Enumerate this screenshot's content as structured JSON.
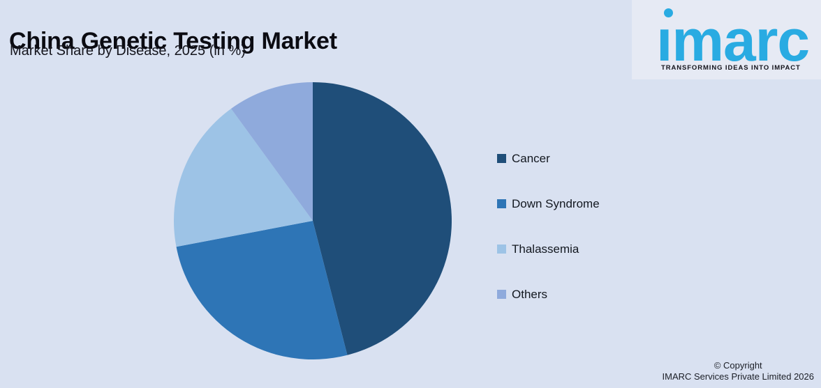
{
  "chart_data": {
    "type": "pie",
    "title": "China Genetic Testing Market",
    "subtitle": "Market Share by Disease, 2025 (in %)",
    "unit": "percent market share",
    "start_angle_deg": 0,
    "direction": "clockwise",
    "legend_position": "right",
    "slices": [
      {
        "label": "Cancer",
        "value": 46,
        "color": "#1F4E79"
      },
      {
        "label": "Down Syndrome",
        "value": 26,
        "color": "#2E75B6"
      },
      {
        "label": "Thalassemia",
        "value": 18,
        "color": "#9DC3E6"
      },
      {
        "label": "Others",
        "value": 10,
        "color": "#8FAADC"
      }
    ]
  },
  "logo": {
    "text": "imarc",
    "display_glyphs": "ımarc",
    "tagline": "TRANSFORMING IDEAS INTO IMPACT",
    "color": "#29ABE2"
  },
  "footer": {
    "copyright_line1": "© Copyright",
    "copyright_line2": "IMARC Services Private Limited 2026"
  },
  "colors": {
    "background": "#D9E1F1",
    "title_text": "#0B0B12"
  }
}
